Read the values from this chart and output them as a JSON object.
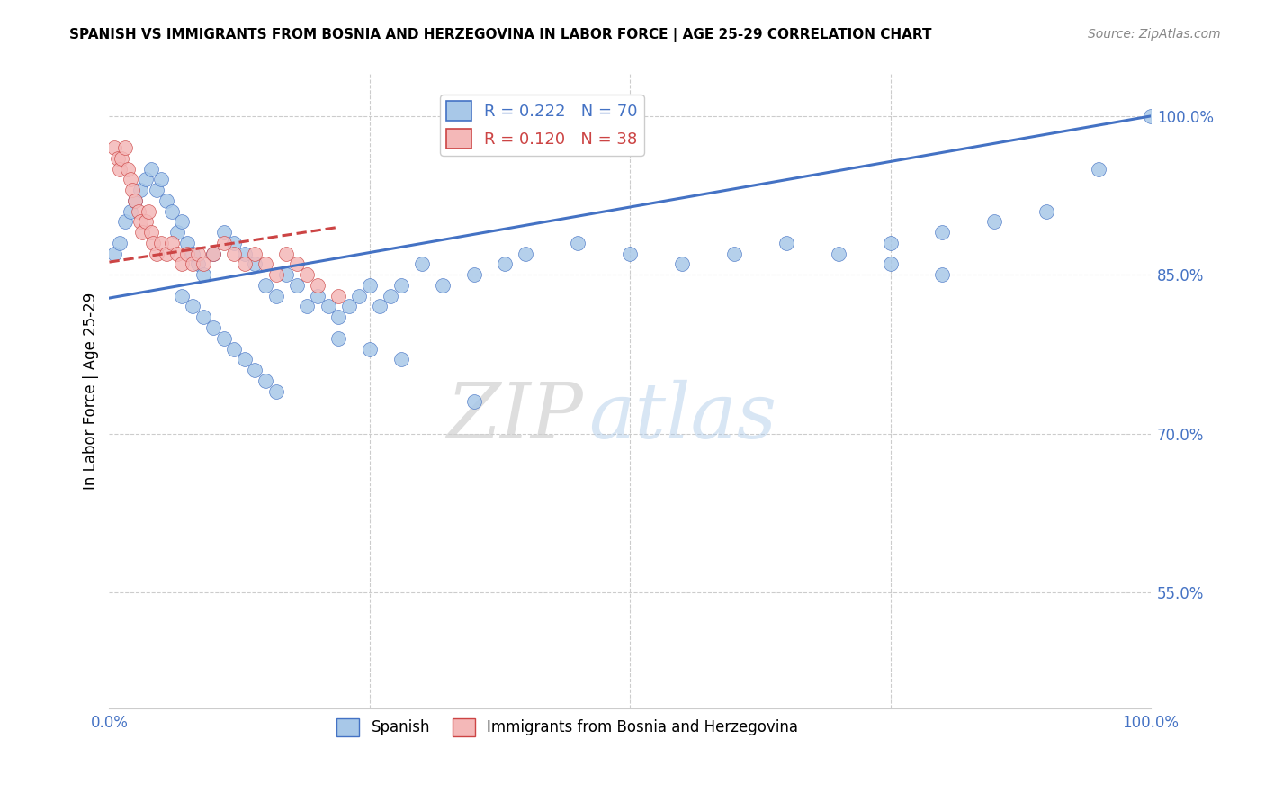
{
  "title": "SPANISH VS IMMIGRANTS FROM BOSNIA AND HERZEGOVINA IN LABOR FORCE | AGE 25-29 CORRELATION CHART",
  "source": "Source: ZipAtlas.com",
  "ylabel": "In Labor Force | Age 25-29",
  "xlim": [
    0.0,
    1.0
  ],
  "ylim": [
    0.44,
    1.04
  ],
  "yticks": [
    0.55,
    0.7,
    0.85,
    1.0
  ],
  "ytick_labels": [
    "55.0%",
    "70.0%",
    "85.0%",
    "100.0%"
  ],
  "xticks": [
    0.0,
    0.125,
    0.25,
    0.375,
    0.5,
    0.625,
    0.75,
    0.875,
    1.0
  ],
  "xtick_labels": [
    "0.0%",
    "",
    "",
    "",
    "",
    "",
    "",
    "",
    "100.0%"
  ],
  "blue_color": "#a8c8e8",
  "pink_color": "#f4b8b8",
  "blue_line_color": "#4472c4",
  "pink_line_color": "#cc4444",
  "R_blue": 0.222,
  "N_blue": 70,
  "R_pink": 0.12,
  "N_pink": 38,
  "blue_scatter_x": [
    0.005,
    0.01,
    0.015,
    0.02,
    0.025,
    0.03,
    0.035,
    0.04,
    0.045,
    0.05,
    0.055,
    0.06,
    0.065,
    0.07,
    0.075,
    0.08,
    0.085,
    0.09,
    0.1,
    0.11,
    0.12,
    0.13,
    0.14,
    0.15,
    0.16,
    0.17,
    0.18,
    0.19,
    0.2,
    0.21,
    0.22,
    0.23,
    0.24,
    0.25,
    0.26,
    0.27,
    0.28,
    0.3,
    0.32,
    0.35,
    0.38,
    0.4,
    0.45,
    0.5,
    0.55,
    0.6,
    0.65,
    0.7,
    0.75,
    0.8,
    0.85,
    0.9,
    0.95,
    1.0,
    0.07,
    0.08,
    0.09,
    0.1,
    0.11,
    0.12,
    0.13,
    0.14,
    0.15,
    0.16,
    0.22,
    0.25,
    0.28,
    0.35,
    0.75,
    0.8
  ],
  "blue_scatter_y": [
    0.87,
    0.88,
    0.9,
    0.91,
    0.92,
    0.93,
    0.94,
    0.95,
    0.93,
    0.94,
    0.92,
    0.91,
    0.89,
    0.9,
    0.88,
    0.87,
    0.86,
    0.85,
    0.87,
    0.89,
    0.88,
    0.87,
    0.86,
    0.84,
    0.83,
    0.85,
    0.84,
    0.82,
    0.83,
    0.82,
    0.81,
    0.82,
    0.83,
    0.84,
    0.82,
    0.83,
    0.84,
    0.86,
    0.84,
    0.85,
    0.86,
    0.87,
    0.88,
    0.87,
    0.86,
    0.87,
    0.88,
    0.87,
    0.88,
    0.89,
    0.9,
    0.91,
    0.95,
    1.0,
    0.83,
    0.82,
    0.81,
    0.8,
    0.79,
    0.78,
    0.77,
    0.76,
    0.75,
    0.74,
    0.79,
    0.78,
    0.77,
    0.73,
    0.86,
    0.85
  ],
  "pink_scatter_x": [
    0.005,
    0.008,
    0.01,
    0.012,
    0.015,
    0.018,
    0.02,
    0.022,
    0.025,
    0.028,
    0.03,
    0.032,
    0.035,
    0.038,
    0.04,
    0.042,
    0.045,
    0.05,
    0.055,
    0.06,
    0.065,
    0.07,
    0.075,
    0.08,
    0.085,
    0.09,
    0.1,
    0.11,
    0.12,
    0.13,
    0.14,
    0.15,
    0.16,
    0.17,
    0.18,
    0.19,
    0.2,
    0.22
  ],
  "pink_scatter_y": [
    0.97,
    0.96,
    0.95,
    0.96,
    0.97,
    0.95,
    0.94,
    0.93,
    0.92,
    0.91,
    0.9,
    0.89,
    0.9,
    0.91,
    0.89,
    0.88,
    0.87,
    0.88,
    0.87,
    0.88,
    0.87,
    0.86,
    0.87,
    0.86,
    0.87,
    0.86,
    0.87,
    0.88,
    0.87,
    0.86,
    0.87,
    0.86,
    0.85,
    0.87,
    0.86,
    0.85,
    0.84,
    0.83
  ],
  "blue_line_x0": 0.0,
  "blue_line_x1": 1.0,
  "blue_line_y0": 0.828,
  "blue_line_y1": 1.0,
  "pink_line_x0": 0.0,
  "pink_line_x1": 0.22,
  "pink_line_y0": 0.862,
  "pink_line_y1": 0.895,
  "watermark_zip": "ZIP",
  "watermark_atlas": "atlas",
  "background_color": "#ffffff",
  "grid_color": "#cccccc",
  "legend_blue_label": "R = 0.222   N = 70",
  "legend_pink_label": "R = 0.120   N = 38",
  "bottom_legend_blue": "Spanish",
  "bottom_legend_pink": "Immigrants from Bosnia and Herzegovina"
}
